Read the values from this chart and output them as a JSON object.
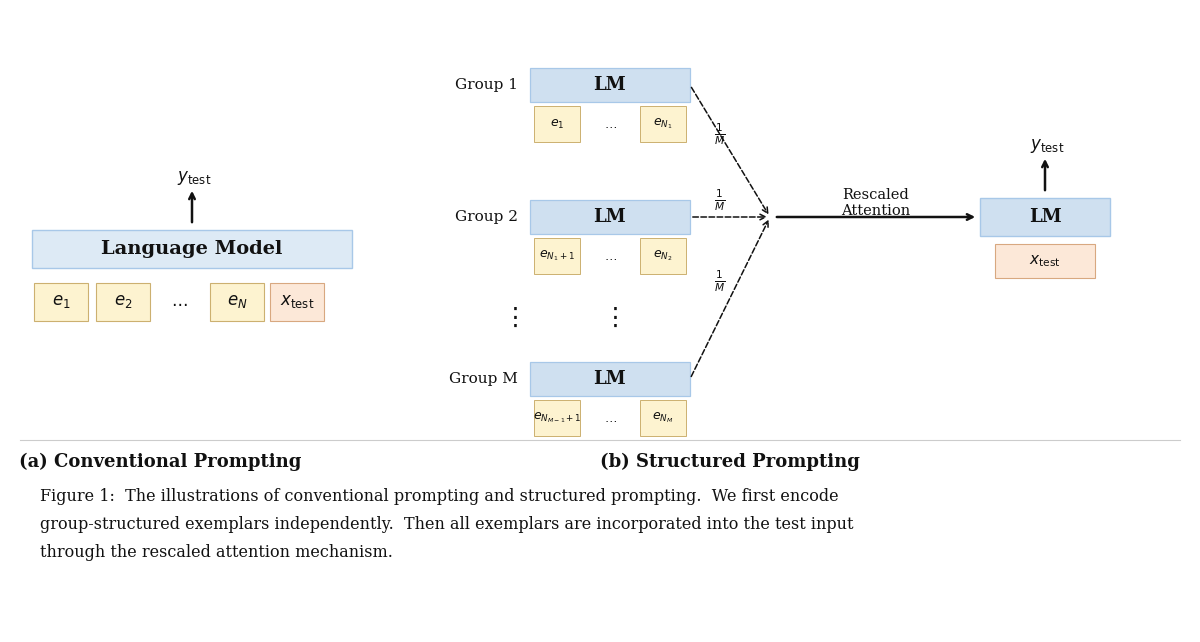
{
  "bg_color": "#ffffff",
  "lm_box_color": "#cfe0f0",
  "exemplar_box_color": "#fdf3d0",
  "xtest_box_color": "#fce8d8",
  "lang_model_box_color": "#ddeaf5",
  "text_color": "#111111",
  "title_a": "(a) Conventional Prompting",
  "title_b": "(b) Structured Prompting",
  "caption_line1": "Figure 1:  The illustrations of conventional prompting and structured prompting.  We first encode",
  "caption_line2": "group-structured exemplars independently.  Then all exemplars are incorporated into the test input",
  "caption_line3": "through the rescaled attention mechanism.",
  "figsize": [
    12.0,
    6.42
  ],
  "dpi": 100
}
